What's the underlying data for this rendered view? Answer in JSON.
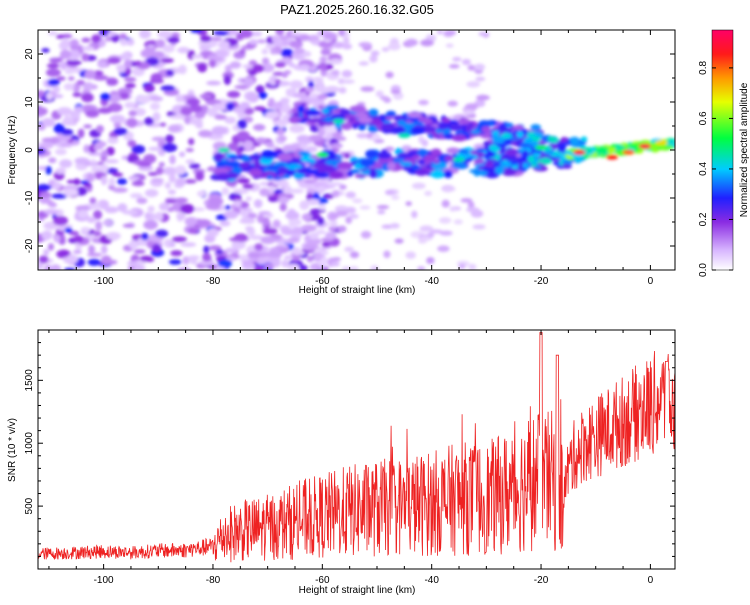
{
  "title": "PAZ1.2025.260.16.32.G05",
  "colors": {
    "snr_line": "#ee2222",
    "axis": "#000000"
  },
  "chart_data": [
    {
      "type": "heatmap",
      "xlabel": "Height of straight line (km)",
      "ylabel": "Frequency (Hz)",
      "xlim": [
        -112,
        4.5
      ],
      "ylim": [
        -25,
        25
      ],
      "xticks": [
        -100,
        -80,
        -60,
        -40,
        -20,
        0
      ],
      "yticks": [
        -20,
        -10,
        0,
        10,
        20
      ],
      "colorbar": {
        "label": "Normalized spectral amplitude",
        "range": [
          0,
          0.95
        ],
        "ticks": [
          0.0,
          0.2,
          0.4,
          0.6,
          0.8
        ],
        "colormap": "rainbow (white, purple, blue, cyan, green, yellow, orange, red, pink)"
      },
      "features": [
        {
          "x_range": [
            -112,
            -70
          ],
          "y_range": [
            -25,
            25
          ],
          "amplitude": 0.15,
          "description_note": "noise"
        },
        {
          "x_range": [
            -80,
            -20
          ],
          "y_range": [
            -6,
            2
          ],
          "amplitude": 0.35
        },
        {
          "x_range": [
            -65,
            -20
          ],
          "y_range": [
            2,
            9
          ],
          "amplitude": 0.3
        },
        {
          "x_range": [
            -15,
            4.5
          ],
          "y_range": [
            -2,
            3
          ],
          "amplitude": 0.9
        }
      ]
    },
    {
      "type": "line",
      "xlabel": "Height of straight line (km)",
      "ylabel": "SNR (10 * v/v)",
      "xlim": [
        -112,
        4.5
      ],
      "ylim": [
        0,
        1900
      ],
      "xticks": [
        -100,
        -80,
        -60,
        -40,
        -20,
        0
      ],
      "yticks": [
        500,
        1000,
        1500
      ],
      "series": [
        {
          "x": [
            -112,
            -105,
            -100,
            -95,
            -90,
            -85,
            -80,
            -78,
            -75,
            -70,
            -65,
            -60,
            -55,
            -50,
            -45,
            -40,
            -35,
            -30,
            -25,
            -22,
            -20,
            -18,
            -16,
            -15,
            -14,
            -12,
            -10,
            -8,
            -6,
            -4,
            -2,
            0,
            2,
            4.5
          ],
          "values": [
            120,
            130,
            140,
            130,
            145,
            150,
            180,
            270,
            300,
            330,
            380,
            420,
            460,
            480,
            500,
            520,
            560,
            560,
            620,
            700,
            700,
            700,
            560,
            800,
            900,
            1000,
            1050,
            1100,
            1150,
            1200,
            1250,
            1300,
            1350,
            1250
          ]
        }
      ],
      "peaks": [
        {
          "x": -20,
          "value": 1880
        },
        {
          "x": -17,
          "value": 1700
        },
        {
          "x": 3,
          "value": 1650
        }
      ]
    }
  ]
}
